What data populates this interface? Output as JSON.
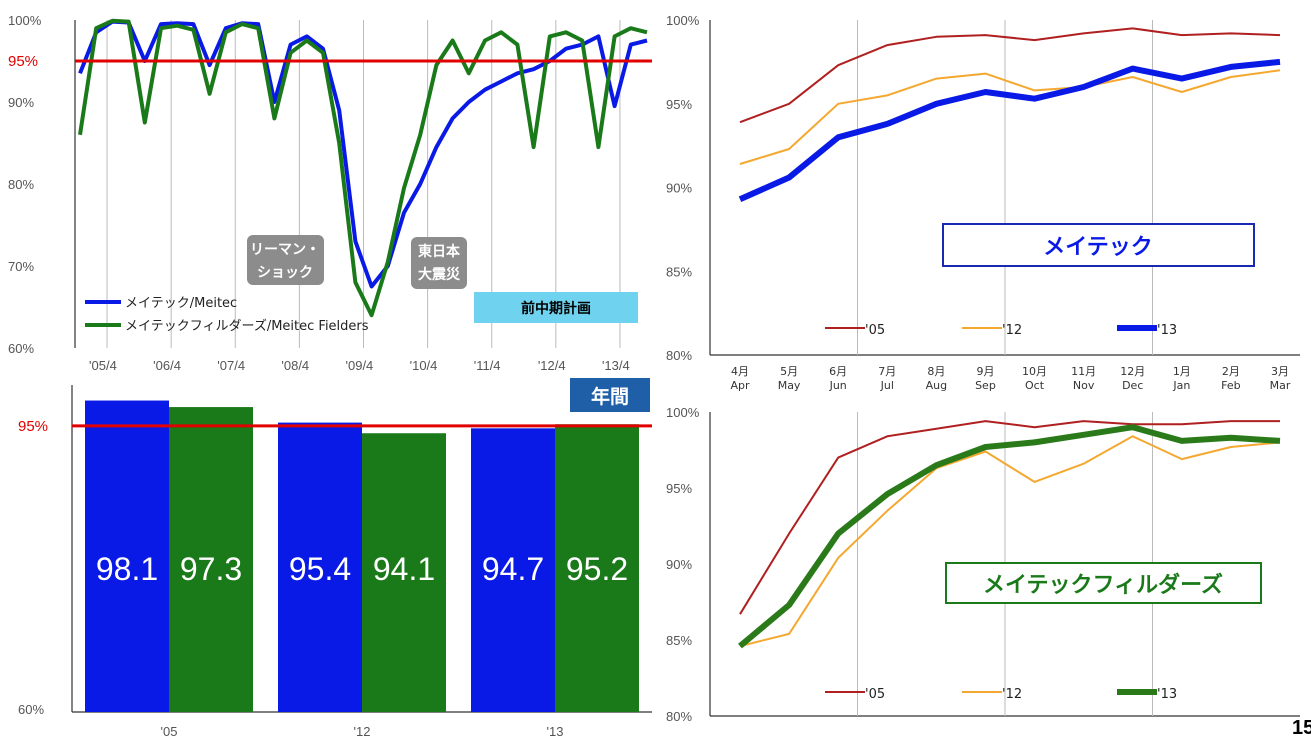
{
  "page_number": "15",
  "colors": {
    "meitec": "#0a1ae6",
    "fielders": "#1a7a1a",
    "target": "#e00000",
    "c05": "#b02020",
    "c12": "#f4a830",
    "c13_meitec": "#0a1ae6",
    "c13_fielders": "#2a7a1a",
    "annot_bg": "#8c8c8c",
    "plan_bg": "#6fd3f0",
    "annual_bg": "#1f5fa8"
  },
  "chart_data": [
    {
      "type": "line",
      "title": "",
      "ylim": [
        60,
        100
      ],
      "y_ticks": [
        "100%",
        "95%",
        "90%",
        "80%",
        "70%",
        "60%"
      ],
      "target_label": "95%",
      "target_value": 95,
      "x_ticks": [
        "'05/4",
        "'06/4",
        "'07/4",
        "'08/4",
        "'09/4",
        "'10/4",
        "'11/4",
        "'12/4",
        "'13/4"
      ],
      "annotations": [
        "リーマン・\nショック",
        "東日本\n大震災",
        "前中期計画"
      ],
      "annotation_lines": [
        [
          "リーマン・",
          "ショック"
        ],
        [
          "東日本",
          "大震災"
        ]
      ],
      "series": [
        {
          "name": "メイテック/Meitec",
          "values": [
            93.5,
            98.5,
            99.8,
            99.7,
            95.0,
            99.5,
            99.6,
            99.5,
            94.5,
            99.0,
            99.6,
            99.5,
            90.0,
            97.0,
            98.0,
            96.5,
            89.0,
            73.0,
            67.5,
            70.0,
            76.5,
            80.0,
            84.5,
            88.0,
            90.0,
            91.5,
            92.5,
            93.5,
            94.0,
            95.0,
            96.5,
            97.0,
            98.0,
            89.5,
            97.0,
            97.5
          ]
        },
        {
          "name": "メイテックフィルダーズ/Meitec Fielders",
          "values": [
            86.0,
            99.0,
            99.9,
            99.8,
            87.5,
            99.0,
            99.3,
            98.8,
            91.0,
            98.5,
            99.5,
            99.0,
            88.0,
            96.0,
            97.5,
            96.0,
            85.0,
            68.0,
            64.0,
            70.5,
            79.5,
            86.0,
            94.5,
            97.5,
            93.5,
            97.5,
            98.5,
            97.0,
            84.5,
            98.0,
            98.5,
            97.5,
            84.5,
            98.0,
            99.0,
            98.5
          ]
        }
      ]
    },
    {
      "type": "bar",
      "title": "年間",
      "ylim": [
        60,
        100
      ],
      "y_ticks": [
        "95%",
        "60%"
      ],
      "target_label": "95%",
      "target_value": 95,
      "categories": [
        "'05",
        "'12",
        "'13"
      ],
      "series": [
        {
          "name": "メイテック",
          "values": [
            98.1,
            95.4,
            94.7
          ]
        },
        {
          "name": "メイテックフィルダーズ",
          "values": [
            97.3,
            94.1,
            95.2
          ]
        }
      ]
    },
    {
      "type": "line",
      "title": "メイテック",
      "ylim": [
        80,
        100
      ],
      "y_ticks": [
        "100%",
        "95%",
        "90%",
        "85%",
        "80%"
      ],
      "categories_jp": [
        "4月",
        "5月",
        "6月",
        "7月",
        "8月",
        "9月",
        "10月",
        "11月",
        "12月",
        "1月",
        "2月",
        "3月"
      ],
      "categories": [
        "Apr",
        "May",
        "Jun",
        "Jul",
        "Aug",
        "Sep",
        "Oct",
        "Nov",
        "Dec",
        "Jan",
        "Feb",
        "Mar"
      ],
      "series": [
        {
          "name": "'05",
          "values": [
            93.9,
            95.0,
            97.3,
            98.5,
            99.0,
            99.1,
            98.8,
            99.2,
            99.5,
            99.1,
            99.2,
            99.1
          ]
        },
        {
          "name": "'12",
          "values": [
            91.4,
            92.3,
            95.0,
            95.5,
            96.5,
            96.8,
            95.8,
            96.0,
            96.6,
            95.7,
            96.6,
            97.0
          ]
        },
        {
          "name": "'13",
          "values": [
            89.3,
            90.6,
            93.0,
            93.8,
            95.0,
            95.7,
            95.3,
            96.0,
            97.1,
            96.5,
            97.2,
            97.5
          ]
        }
      ]
    },
    {
      "type": "line",
      "title": "メイテックフィルダーズ",
      "ylim": [
        80,
        100
      ],
      "y_ticks": [
        "100%",
        "95%",
        "90%",
        "85%",
        "80%"
      ],
      "series": [
        {
          "name": "'05",
          "values": [
            86.7,
            92.0,
            97.0,
            98.4,
            98.9,
            99.4,
            99.0,
            99.4,
            99.2,
            99.2,
            99.4,
            99.4
          ]
        },
        {
          "name": "'12",
          "values": [
            84.6,
            85.4,
            90.4,
            93.5,
            96.3,
            97.4,
            95.4,
            96.6,
            98.4,
            96.9,
            97.7,
            98.0
          ]
        },
        {
          "name": "'13",
          "values": [
            84.6,
            87.3,
            92.0,
            94.6,
            96.5,
            97.7,
            98.0,
            98.5,
            99.0,
            98.1,
            98.3,
            98.1
          ]
        }
      ]
    }
  ]
}
